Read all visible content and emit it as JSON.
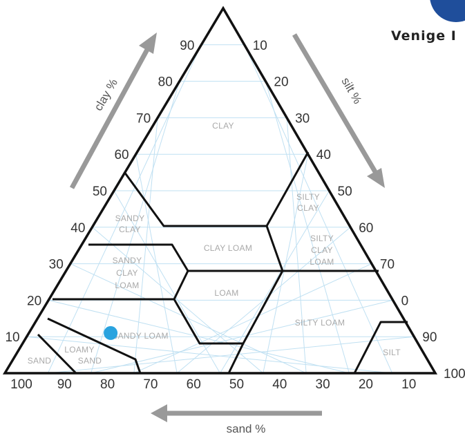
{
  "brand": {
    "text": "Venige I",
    "logo_color": "#1f4e9b"
  },
  "colors": {
    "grid": "#bfe0f2",
    "outline": "#111111",
    "arrow": "#999999",
    "sample_point": "#2aa3df"
  },
  "axes": {
    "clay": {
      "title": "clay %",
      "ticks": [
        "10",
        "20",
        "30",
        "40",
        "50",
        "60",
        "70",
        "80",
        "90"
      ]
    },
    "silt": {
      "title": "silt %",
      "ticks": [
        "10",
        "20",
        "30",
        "40",
        "50",
        "60",
        "70",
        "0",
        "90",
        "100"
      ]
    },
    "sand": {
      "title": "sand %",
      "ticks": [
        "100",
        "90",
        "80",
        "70",
        "60",
        "50",
        "40",
        "30",
        "20",
        "10"
      ]
    }
  },
  "regions": {
    "clay": [
      "CLAY"
    ],
    "silty_clay": [
      "SILTY",
      "CLAY"
    ],
    "sandy_clay": [
      "SANDY",
      "CLAY"
    ],
    "clay_loam": [
      "CLAY LOAM"
    ],
    "silty_clay_loam": [
      "SILTY",
      "CLAY",
      "LOAM"
    ],
    "sandy_clay_loam": [
      "SANDY",
      "CLAY",
      "LOAM"
    ],
    "loam": [
      "LOAM"
    ],
    "silty_loam": [
      "SILTY LOAM"
    ],
    "sandy_loam": [
      "SANDY LOAM"
    ],
    "loamy_sand": [
      "LOAMY",
      "SAND"
    ],
    "sand": [
      "SAND"
    ],
    "silt": [
      "SILT"
    ]
  },
  "sample_point": {
    "clay_pct": 11,
    "silt_pct": 19,
    "sand_pct": 70
  }
}
